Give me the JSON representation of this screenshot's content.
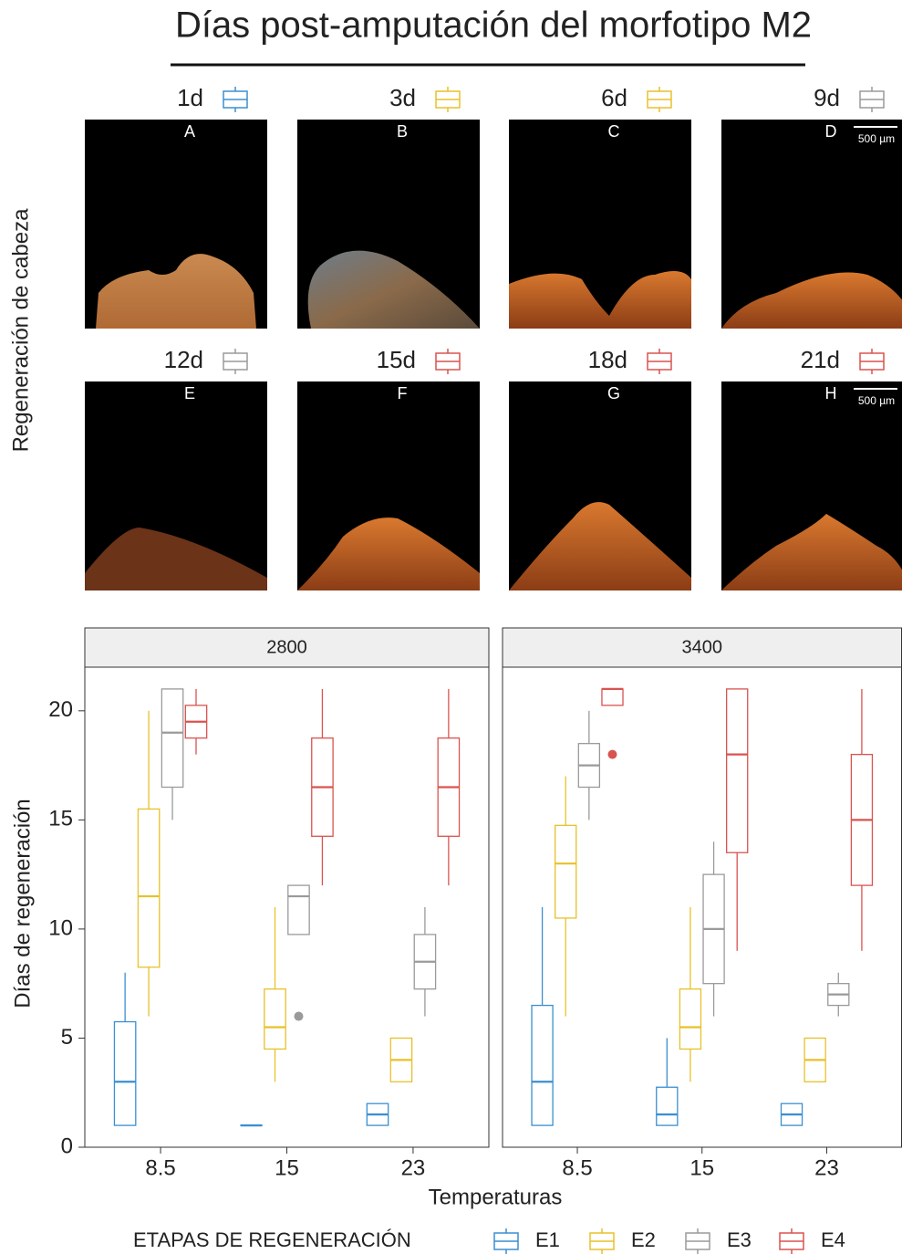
{
  "figure": {
    "title": "Días post-amputación del morfotipo M2",
    "ylabel": "Regeneración de cabeza",
    "panels": [
      {
        "day": "1d",
        "letter": "A",
        "color": "#3a8fd1"
      },
      {
        "day": "3d",
        "letter": "B",
        "color": "#e8c12a"
      },
      {
        "day": "6d",
        "letter": "C",
        "color": "#e8c12a"
      },
      {
        "day": "9d",
        "letter": "D",
        "color": "#9a9a9a",
        "scale": "500 µm"
      },
      {
        "day": "12d",
        "letter": "E",
        "color": "#9a9a9a"
      },
      {
        "day": "15d",
        "letter": "F",
        "color": "#d9534f"
      },
      {
        "day": "18d",
        "letter": "G",
        "color": "#d9534f"
      },
      {
        "day": "21d",
        "letter": "H",
        "color": "#d9534f",
        "scale": "500 µm"
      }
    ]
  },
  "chart_data": {
    "type": "box",
    "xlabel": "Temperaturas",
    "ylabel": "Días de regeneración",
    "legend_title": "ETAPAS DE REGENERACIÓN",
    "categories": [
      "8.5",
      "15",
      "23"
    ],
    "ylim": [
      0,
      22
    ],
    "yticks": [
      0,
      5,
      10,
      15,
      20
    ],
    "series": [
      {
        "name": "E1",
        "color": "#3a8fd1"
      },
      {
        "name": "E2",
        "color": "#e8c12a"
      },
      {
        "name": "E3",
        "color": "#9a9a9a"
      },
      {
        "name": "E4",
        "color": "#d9534f"
      }
    ],
    "facets": [
      {
        "label": "2800",
        "boxes": [
          [
            {
              "min": 1,
              "q1": 1,
              "median": 3,
              "q3": 5.75,
              "max": 8
            },
            {
              "min": 6,
              "q1": 8.25,
              "median": 11.5,
              "q3": 15.5,
              "max": 20
            },
            {
              "min": 15,
              "q1": 16.5,
              "median": 19,
              "q3": 21,
              "max": 21
            },
            {
              "min": 18,
              "q1": 18.75,
              "median": 19.5,
              "q3": 20.25,
              "max": 21
            }
          ],
          [
            {
              "min": 1,
              "q1": 1,
              "median": 1,
              "q3": 1,
              "max": 1
            },
            {
              "min": 3,
              "q1": 4.5,
              "median": 5.5,
              "q3": 7.25,
              "max": 11
            },
            {
              "min": 9.75,
              "q1": 9.75,
              "median": 11.5,
              "q3": 12,
              "max": 12,
              "outliers": [
                6
              ]
            },
            {
              "min": 12,
              "q1": 14.25,
              "median": 16.5,
              "q3": 18.75,
              "max": 21
            }
          ],
          [
            {
              "min": 1,
              "q1": 1,
              "median": 1.5,
              "q3": 2,
              "max": 2
            },
            {
              "min": 3,
              "q1": 3,
              "median": 4,
              "q3": 5,
              "max": 5
            },
            {
              "min": 6,
              "q1": 7.25,
              "median": 8.5,
              "q3": 9.75,
              "max": 11
            },
            {
              "min": 12,
              "q1": 14.25,
              "median": 16.5,
              "q3": 18.75,
              "max": 21
            }
          ]
        ]
      },
      {
        "label": "3400",
        "boxes": [
          [
            {
              "min": 1,
              "q1": 1,
              "median": 3,
              "q3": 6.5,
              "max": 11
            },
            {
              "min": 6,
              "q1": 10.5,
              "median": 13,
              "q3": 14.75,
              "max": 17
            },
            {
              "min": 15,
              "q1": 16.5,
              "median": 17.5,
              "q3": 18.5,
              "max": 20
            },
            {
              "min": 20.25,
              "q1": 20.25,
              "median": 21,
              "q3": 21,
              "max": 21,
              "outliers": [
                18
              ]
            }
          ],
          [
            {
              "min": 1,
              "q1": 1,
              "median": 1.5,
              "q3": 2.75,
              "max": 5
            },
            {
              "min": 3,
              "q1": 4.5,
              "median": 5.5,
              "q3": 7.25,
              "max": 11
            },
            {
              "min": 6,
              "q1": 7.5,
              "median": 10,
              "q3": 12.5,
              "max": 14
            },
            {
              "min": 9,
              "q1": 13.5,
              "median": 18,
              "q3": 21,
              "max": 21
            }
          ],
          [
            {
              "min": 1,
              "q1": 1,
              "median": 1.5,
              "q3": 2,
              "max": 2
            },
            {
              "min": 3,
              "q1": 3,
              "median": 4,
              "q3": 5,
              "max": 5
            },
            {
              "min": 6,
              "q1": 6.5,
              "median": 7,
              "q3": 7.5,
              "max": 8
            },
            {
              "min": 9,
              "q1": 12,
              "median": 15,
              "q3": 18,
              "max": 21
            }
          ]
        ]
      }
    ]
  }
}
